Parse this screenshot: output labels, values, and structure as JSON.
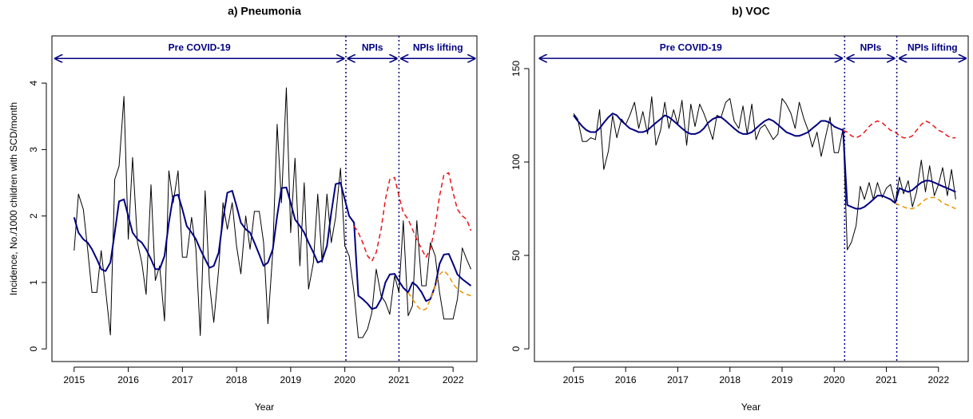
{
  "chart_data": [
    {
      "type": "line",
      "title": "a) Pneumonia",
      "xlabel": "Year",
      "ylabel": "Incidence, No./1000 children with SCD/month",
      "xlim": [
        2014.59,
        2022.44
      ],
      "ylim": [
        -0.19,
        4.71
      ],
      "xticks": [
        2015,
        2016,
        2017,
        2018,
        2019,
        2020,
        2021,
        2022
      ],
      "yticks": [
        0,
        1,
        2,
        3,
        4
      ],
      "vlines": [
        2020.02,
        2021.0
      ],
      "annotations": [
        {
          "text": "Pre COVID-19",
          "x0": 2014.65,
          "x1": 2019.98,
          "y": 4.37
        },
        {
          "text": "NPIs",
          "x0": 2020.06,
          "x1": 2020.96,
          "y": 4.37
        },
        {
          "text": "NPIs lifting",
          "x0": 2021.04,
          "x1": 2022.4,
          "y": 4.37
        }
      ],
      "x": [
        2015.0,
        2015.08,
        2015.17,
        2015.25,
        2015.33,
        2015.42,
        2015.5,
        2015.58,
        2015.67,
        2015.75,
        2015.83,
        2015.92,
        2016.0,
        2016.08,
        2016.17,
        2016.25,
        2016.33,
        2016.42,
        2016.5,
        2016.58,
        2016.67,
        2016.75,
        2016.83,
        2016.92,
        2017.0,
        2017.08,
        2017.17,
        2017.25,
        2017.33,
        2017.42,
        2017.5,
        2017.58,
        2017.67,
        2017.75,
        2017.83,
        2017.92,
        2018.0,
        2018.08,
        2018.17,
        2018.25,
        2018.33,
        2018.42,
        2018.5,
        2018.58,
        2018.67,
        2018.75,
        2018.83,
        2018.92,
        2019.0,
        2019.08,
        2019.17,
        2019.25,
        2019.33,
        2019.42,
        2019.5,
        2019.58,
        2019.67,
        2019.75,
        2019.83,
        2019.92,
        2020.0,
        2020.08,
        2020.17,
        2020.25,
        2020.33,
        2020.42,
        2020.5,
        2020.58,
        2020.67,
        2020.75,
        2020.83,
        2020.92,
        2021.0,
        2021.08,
        2021.17,
        2021.25,
        2021.33,
        2021.42,
        2021.5,
        2021.58,
        2021.67,
        2021.75,
        2021.83,
        2021.92,
        2022.0,
        2022.08,
        2022.17,
        2022.25,
        2022.33
      ],
      "series": [
        {
          "color": "#000000",
          "width": 1,
          "dash": false,
          "values": [
            1.48,
            2.33,
            2.1,
            1.5,
            0.85,
            0.85,
            1.48,
            0.9,
            0.21,
            2.55,
            2.75,
            3.8,
            1.65,
            2.88,
            1.6,
            1.3,
            0.82,
            2.47,
            1.03,
            1.25,
            0.42,
            2.68,
            2.2,
            2.68,
            1.38,
            1.38,
            1.98,
            1.5,
            0.2,
            2.38,
            0.98,
            0.4,
            1.2,
            2.2,
            1.8,
            2.2,
            1.55,
            1.13,
            2.0,
            1.5,
            2.07,
            2.07,
            1.6,
            0.38,
            1.47,
            3.38,
            2.2,
            3.93,
            1.75,
            2.87,
            1.25,
            2.5,
            0.9,
            1.3,
            2.33,
            1.3,
            2.33,
            1.6,
            1.98,
            2.72,
            1.55,
            1.4,
            0.85,
            0.17,
            0.17,
            0.3,
            0.55,
            1.2,
            0.8,
            0.7,
            0.52,
            1.1,
            0.85,
            1.93,
            0.5,
            0.65,
            1.93,
            0.95,
            0.95,
            1.6,
            1.4,
            0.85,
            0.45,
            0.45,
            0.45,
            0.75,
            1.52,
            1.35,
            1.2
          ]
        },
        {
          "color": "#000080",
          "width": 2,
          "dash": false,
          "values": [
            1.98,
            1.75,
            1.65,
            1.6,
            1.5,
            1.35,
            1.2,
            1.17,
            1.3,
            1.75,
            2.22,
            2.25,
            2.0,
            1.75,
            1.65,
            1.6,
            1.5,
            1.35,
            1.2,
            1.2,
            1.4,
            1.9,
            2.3,
            2.32,
            2.1,
            1.85,
            1.75,
            1.65,
            1.5,
            1.35,
            1.22,
            1.25,
            1.45,
            1.95,
            2.35,
            2.38,
            2.15,
            1.9,
            1.8,
            1.75,
            1.6,
            1.42,
            1.25,
            1.3,
            1.5,
            2.0,
            2.42,
            2.43,
            2.2,
            1.95,
            1.85,
            1.75,
            1.6,
            1.45,
            1.3,
            1.33,
            1.55,
            2.05,
            2.48,
            2.5,
            2.25,
            2.0,
            1.9,
            0.8,
            0.75,
            0.68,
            0.6,
            0.62,
            0.75,
            1.0,
            1.12,
            1.13,
            1.02,
            0.92,
            0.85,
            1.0,
            0.95,
            0.85,
            0.72,
            0.75,
            0.95,
            1.28,
            1.42,
            1.43,
            1.28,
            1.12,
            1.05,
            1.0,
            0.95
          ]
        },
        {
          "color": "#e8161b",
          "width": 1.5,
          "dash": true,
          "values": [
            null,
            null,
            null,
            null,
            null,
            null,
            null,
            null,
            null,
            null,
            null,
            null,
            null,
            null,
            null,
            null,
            null,
            null,
            null,
            null,
            null,
            null,
            null,
            null,
            null,
            null,
            null,
            null,
            null,
            null,
            null,
            null,
            null,
            null,
            null,
            null,
            null,
            null,
            null,
            null,
            null,
            null,
            null,
            null,
            null,
            null,
            null,
            null,
            null,
            null,
            null,
            null,
            null,
            null,
            null,
            null,
            null,
            null,
            null,
            null,
            null,
            null,
            1.85,
            1.75,
            1.6,
            1.4,
            1.32,
            1.45,
            1.8,
            2.25,
            2.55,
            2.58,
            2.3,
            2.05,
            1.95,
            1.8,
            1.65,
            1.5,
            1.38,
            1.5,
            1.85,
            2.3,
            2.62,
            2.65,
            2.35,
            2.1,
            2.0,
            1.95,
            1.78
          ]
        },
        {
          "color": "#e69500",
          "width": 1.5,
          "dash": true,
          "values": [
            null,
            null,
            null,
            null,
            null,
            null,
            null,
            null,
            null,
            null,
            null,
            null,
            null,
            null,
            null,
            null,
            null,
            null,
            null,
            null,
            null,
            null,
            null,
            null,
            null,
            null,
            null,
            null,
            null,
            null,
            null,
            null,
            null,
            null,
            null,
            null,
            null,
            null,
            null,
            null,
            null,
            null,
            null,
            null,
            null,
            null,
            null,
            null,
            null,
            null,
            null,
            null,
            null,
            null,
            null,
            null,
            null,
            null,
            null,
            null,
            null,
            null,
            null,
            null,
            null,
            null,
            null,
            null,
            null,
            null,
            null,
            null,
            null,
            null,
            0.85,
            0.75,
            0.65,
            0.58,
            0.6,
            0.75,
            0.95,
            1.12,
            1.18,
            1.1,
            0.98,
            0.9,
            0.85,
            0.82,
            0.8
          ]
        }
      ]
    },
    {
      "type": "line",
      "title": "b) VOC",
      "xlabel": "Year",
      "xlim": [
        2014.25,
        2022.57
      ],
      "ylim": [
        -6.8,
        167.5
      ],
      "xticks": [
        2015,
        2016,
        2017,
        2018,
        2019,
        2020,
        2021,
        2022
      ],
      "yticks": [
        0,
        50,
        100,
        150
      ],
      "vlines": [
        2020.2,
        2021.2
      ],
      "annotations": [
        {
          "text": "Pre COVID-19",
          "x0": 2014.35,
          "x1": 2020.15,
          "y": 155.5
        },
        {
          "text": "NPIs",
          "x0": 2020.25,
          "x1": 2021.15,
          "y": 155.5
        },
        {
          "text": "NPIs lifting",
          "x0": 2021.25,
          "x1": 2022.52,
          "y": 155.5
        }
      ],
      "x": [
        2015.0,
        2015.08,
        2015.17,
        2015.25,
        2015.33,
        2015.42,
        2015.5,
        2015.58,
        2015.67,
        2015.75,
        2015.83,
        2015.92,
        2016.0,
        2016.08,
        2016.17,
        2016.25,
        2016.33,
        2016.42,
        2016.5,
        2016.58,
        2016.67,
        2016.75,
        2016.83,
        2016.92,
        2017.0,
        2017.08,
        2017.17,
        2017.25,
        2017.33,
        2017.42,
        2017.5,
        2017.58,
        2017.67,
        2017.75,
        2017.83,
        2017.92,
        2018.0,
        2018.08,
        2018.17,
        2018.25,
        2018.33,
        2018.42,
        2018.5,
        2018.58,
        2018.67,
        2018.75,
        2018.83,
        2018.92,
        2019.0,
        2019.08,
        2019.17,
        2019.25,
        2019.33,
        2019.42,
        2019.5,
        2019.58,
        2019.67,
        2019.75,
        2019.83,
        2019.92,
        2020.0,
        2020.08,
        2020.17,
        2020.25,
        2020.33,
        2020.42,
        2020.5,
        2020.58,
        2020.67,
        2020.75,
        2020.83,
        2020.92,
        2021.0,
        2021.08,
        2021.17,
        2021.25,
        2021.33,
        2021.42,
        2021.5,
        2021.58,
        2021.67,
        2021.75,
        2021.83,
        2021.92,
        2022.0,
        2022.08,
        2022.17,
        2022.25,
        2022.33
      ],
      "series": [
        {
          "color": "#000000",
          "width": 1,
          "dash": false,
          "values": [
            126,
            123,
            111,
            111,
            113,
            112,
            128,
            96,
            106,
            125,
            113,
            123,
            120,
            125,
            132,
            118,
            127,
            115,
            135,
            109,
            117,
            132,
            118,
            128,
            120,
            133,
            109,
            131,
            119,
            131,
            126,
            120,
            112,
            125,
            124,
            132,
            134,
            122,
            118,
            130,
            115,
            131,
            112,
            118,
            120,
            116,
            112,
            115,
            134,
            131,
            126,
            118,
            132,
            123,
            117,
            108,
            116,
            103,
            113,
            124,
            105,
            105,
            118,
            53,
            57,
            66,
            87,
            80,
            89,
            80,
            89,
            81,
            86,
            88,
            78,
            92,
            83,
            90,
            76,
            84,
            101,
            84,
            98,
            82,
            88,
            97,
            82,
            96,
            80
          ]
        },
        {
          "color": "#000080",
          "width": 2,
          "dash": false,
          "values": [
            125,
            122,
            119,
            117,
            116,
            116,
            118,
            121,
            124,
            126,
            125,
            122,
            120,
            118,
            117,
            116,
            116,
            117,
            119,
            121,
            123,
            125,
            124,
            122,
            120,
            118,
            116,
            115,
            115,
            116,
            118,
            121,
            123,
            124,
            124,
            122,
            120,
            118,
            116,
            115,
            115,
            116,
            118,
            120,
            122,
            123,
            122,
            120,
            118,
            116,
            115,
            114,
            114,
            115,
            116,
            118,
            120,
            122,
            122,
            121,
            119,
            118,
            117,
            77,
            76,
            75,
            75,
            76,
            78,
            80,
            82,
            82,
            81,
            80,
            78,
            86,
            85,
            84,
            85,
            87,
            89,
            90,
            90,
            89,
            88,
            87,
            86,
            85,
            84
          ]
        },
        {
          "color": "#e8161b",
          "width": 1.5,
          "dash": true,
          "values": [
            null,
            null,
            null,
            null,
            null,
            null,
            null,
            null,
            null,
            null,
            null,
            null,
            null,
            null,
            null,
            null,
            null,
            null,
            null,
            null,
            null,
            null,
            null,
            null,
            null,
            null,
            null,
            null,
            null,
            null,
            null,
            null,
            null,
            null,
            null,
            null,
            null,
            null,
            null,
            null,
            null,
            null,
            null,
            null,
            null,
            null,
            null,
            null,
            null,
            null,
            null,
            null,
            null,
            null,
            null,
            null,
            null,
            null,
            null,
            null,
            null,
            null,
            117,
            116,
            114,
            113,
            114,
            116,
            119,
            121,
            122,
            121,
            119,
            117,
            116,
            114,
            113,
            113,
            114,
            117,
            120,
            122,
            121,
            119,
            117,
            116,
            114,
            113,
            113
          ]
        },
        {
          "color": "#e69500",
          "width": 1.5,
          "dash": true,
          "values": [
            null,
            null,
            null,
            null,
            null,
            null,
            null,
            null,
            null,
            null,
            null,
            null,
            null,
            null,
            null,
            null,
            null,
            null,
            null,
            null,
            null,
            null,
            null,
            null,
            null,
            null,
            null,
            null,
            null,
            null,
            null,
            null,
            null,
            null,
            null,
            null,
            null,
            null,
            null,
            null,
            null,
            null,
            null,
            null,
            null,
            null,
            null,
            null,
            null,
            null,
            null,
            null,
            null,
            null,
            null,
            null,
            null,
            null,
            null,
            null,
            null,
            null,
            null,
            null,
            null,
            null,
            null,
            null,
            null,
            null,
            null,
            null,
            null,
            null,
            78,
            77,
            76,
            75,
            75,
            76,
            78,
            80,
            81,
            81,
            80,
            78,
            77,
            76,
            75
          ]
        }
      ]
    }
  ]
}
